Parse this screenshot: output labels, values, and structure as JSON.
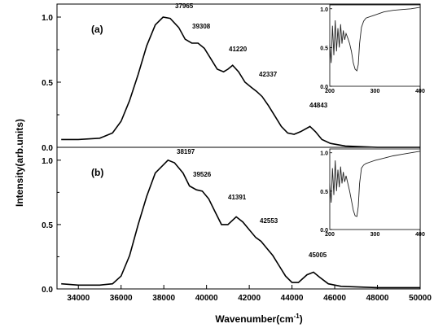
{
  "chart_data": [
    {
      "type": "line",
      "panel_label": "(a)",
      "xlim": [
        33000,
        50000
      ],
      "ylim": [
        0.0,
        1.1
      ],
      "x_ticks": [],
      "y_ticks": [
        "0.0",
        "0.5",
        "1.0"
      ],
      "series": [
        {
          "points": [
            [
              33200,
              0.06
            ],
            [
              34000,
              0.06
            ],
            [
              35000,
              0.07
            ],
            [
              35600,
              0.11
            ],
            [
              36000,
              0.2
            ],
            [
              36400,
              0.36
            ],
            [
              36800,
              0.56
            ],
            [
              37200,
              0.78
            ],
            [
              37600,
              0.94
            ],
            [
              37965,
              1.0
            ],
            [
              38300,
              0.99
            ],
            [
              38700,
              0.92
            ],
            [
              39000,
              0.83
            ],
            [
              39308,
              0.8
            ],
            [
              39600,
              0.8
            ],
            [
              39900,
              0.76
            ],
            [
              40200,
              0.68
            ],
            [
              40500,
              0.6
            ],
            [
              40800,
              0.58
            ],
            [
              41000,
              0.6
            ],
            [
              41220,
              0.63
            ],
            [
              41500,
              0.58
            ],
            [
              41800,
              0.5
            ],
            [
              42100,
              0.46
            ],
            [
              42337,
              0.43
            ],
            [
              42600,
              0.39
            ],
            [
              42900,
              0.32
            ],
            [
              43200,
              0.24
            ],
            [
              43500,
              0.16
            ],
            [
              43800,
              0.11
            ],
            [
              44100,
              0.1
            ],
            [
              44400,
              0.12
            ],
            [
              44843,
              0.16
            ],
            [
              45100,
              0.12
            ],
            [
              45400,
              0.06
            ],
            [
              45800,
              0.03
            ],
            [
              46500,
              0.01
            ],
            [
              48000,
              0.0
            ],
            [
              50000,
              0.0
            ]
          ]
        }
      ],
      "annotations": [
        "37965",
        "39308",
        "41220",
        "42337",
        "44843"
      ],
      "inset": {
        "xlim": [
          200,
          400
        ],
        "ylim": [
          0.0,
          1.05
        ],
        "x_ticks": [
          "200",
          "300",
          "400"
        ],
        "y_ticks": [
          "0.0",
          "0.5",
          "1.0"
        ],
        "points": [
          [
            200,
            0.55
          ],
          [
            203,
            0.3
          ],
          [
            206,
            0.78
          ],
          [
            209,
            0.4
          ],
          [
            212,
            0.85
          ],
          [
            215,
            0.45
          ],
          [
            218,
            0.75
          ],
          [
            221,
            0.5
          ],
          [
            224,
            0.8
          ],
          [
            227,
            0.55
          ],
          [
            230,
            0.72
          ],
          [
            233,
            0.6
          ],
          [
            236,
            0.68
          ],
          [
            240,
            0.62
          ],
          [
            244,
            0.55
          ],
          [
            248,
            0.45
          ],
          [
            252,
            0.3
          ],
          [
            256,
            0.22
          ],
          [
            260,
            0.2
          ],
          [
            263,
            0.28
          ],
          [
            266,
            0.55
          ],
          [
            270,
            0.76
          ],
          [
            275,
            0.84
          ],
          [
            280,
            0.88
          ],
          [
            290,
            0.9
          ],
          [
            300,
            0.92
          ],
          [
            320,
            0.96
          ],
          [
            340,
            0.98
          ],
          [
            360,
            0.99
          ],
          [
            380,
            1.0
          ],
          [
            400,
            1.02
          ]
        ]
      }
    },
    {
      "type": "line",
      "panel_label": "(b)",
      "xlim": [
        33000,
        50000
      ],
      "ylim": [
        0.0,
        1.1
      ],
      "x_ticks": [
        "34000",
        "36000",
        "38000",
        "40000",
        "42000",
        "44000",
        "46000",
        "48000",
        "50000"
      ],
      "y_ticks": [
        "0.0",
        "0.5",
        "1.0"
      ],
      "series": [
        {
          "points": [
            [
              33200,
              0.04
            ],
            [
              34000,
              0.03
            ],
            [
              35000,
              0.03
            ],
            [
              35600,
              0.04
            ],
            [
              36000,
              0.1
            ],
            [
              36400,
              0.26
            ],
            [
              36800,
              0.5
            ],
            [
              37200,
              0.72
            ],
            [
              37600,
              0.9
            ],
            [
              38197,
              1.0
            ],
            [
              38500,
              0.98
            ],
            [
              38900,
              0.9
            ],
            [
              39200,
              0.8
            ],
            [
              39526,
              0.77
            ],
            [
              39800,
              0.76
            ],
            [
              40100,
              0.7
            ],
            [
              40400,
              0.6
            ],
            [
              40700,
              0.5
            ],
            [
              41000,
              0.5
            ],
            [
              41391,
              0.56
            ],
            [
              41700,
              0.52
            ],
            [
              42000,
              0.46
            ],
            [
              42300,
              0.4
            ],
            [
              42553,
              0.37
            ],
            [
              42800,
              0.32
            ],
            [
              43100,
              0.26
            ],
            [
              43400,
              0.18
            ],
            [
              43700,
              0.1
            ],
            [
              44000,
              0.05
            ],
            [
              44300,
              0.05
            ],
            [
              44700,
              0.11
            ],
            [
              45005,
              0.13
            ],
            [
              45300,
              0.09
            ],
            [
              45700,
              0.04
            ],
            [
              46300,
              0.02
            ],
            [
              48000,
              0.01
            ],
            [
              50000,
              0.01
            ]
          ]
        }
      ],
      "annotations": [
        "38197",
        "39526",
        "41391",
        "42553",
        "45005"
      ],
      "inset": {
        "xlim": [
          200,
          400
        ],
        "ylim": [
          0.0,
          1.05
        ],
        "x_ticks": [
          "200",
          "300",
          "400"
        ],
        "y_ticks": [
          "0.0",
          "0.5",
          "1.0"
        ],
        "points": [
          [
            200,
            0.6
          ],
          [
            203,
            0.35
          ],
          [
            206,
            0.8
          ],
          [
            209,
            0.45
          ],
          [
            212,
            0.9
          ],
          [
            215,
            0.5
          ],
          [
            218,
            0.78
          ],
          [
            221,
            0.55
          ],
          [
            224,
            0.82
          ],
          [
            227,
            0.6
          ],
          [
            230,
            0.75
          ],
          [
            233,
            0.62
          ],
          [
            236,
            0.7
          ],
          [
            240,
            0.6
          ],
          [
            244,
            0.5
          ],
          [
            248,
            0.38
          ],
          [
            252,
            0.25
          ],
          [
            256,
            0.18
          ],
          [
            260,
            0.17
          ],
          [
            263,
            0.3
          ],
          [
            266,
            0.6
          ],
          [
            270,
            0.8
          ],
          [
            275,
            0.84
          ],
          [
            280,
            0.86
          ],
          [
            290,
            0.88
          ],
          [
            300,
            0.9
          ],
          [
            320,
            0.93
          ],
          [
            340,
            0.96
          ],
          [
            360,
            0.98
          ],
          [
            380,
            1.0
          ],
          [
            400,
            1.02
          ]
        ]
      }
    }
  ],
  "xlabel_main": "Wavenumber(cm",
  "xlabel_sup": "-1",
  "xlabel_close": ")",
  "ylabel": "Intensity(arb.units)"
}
